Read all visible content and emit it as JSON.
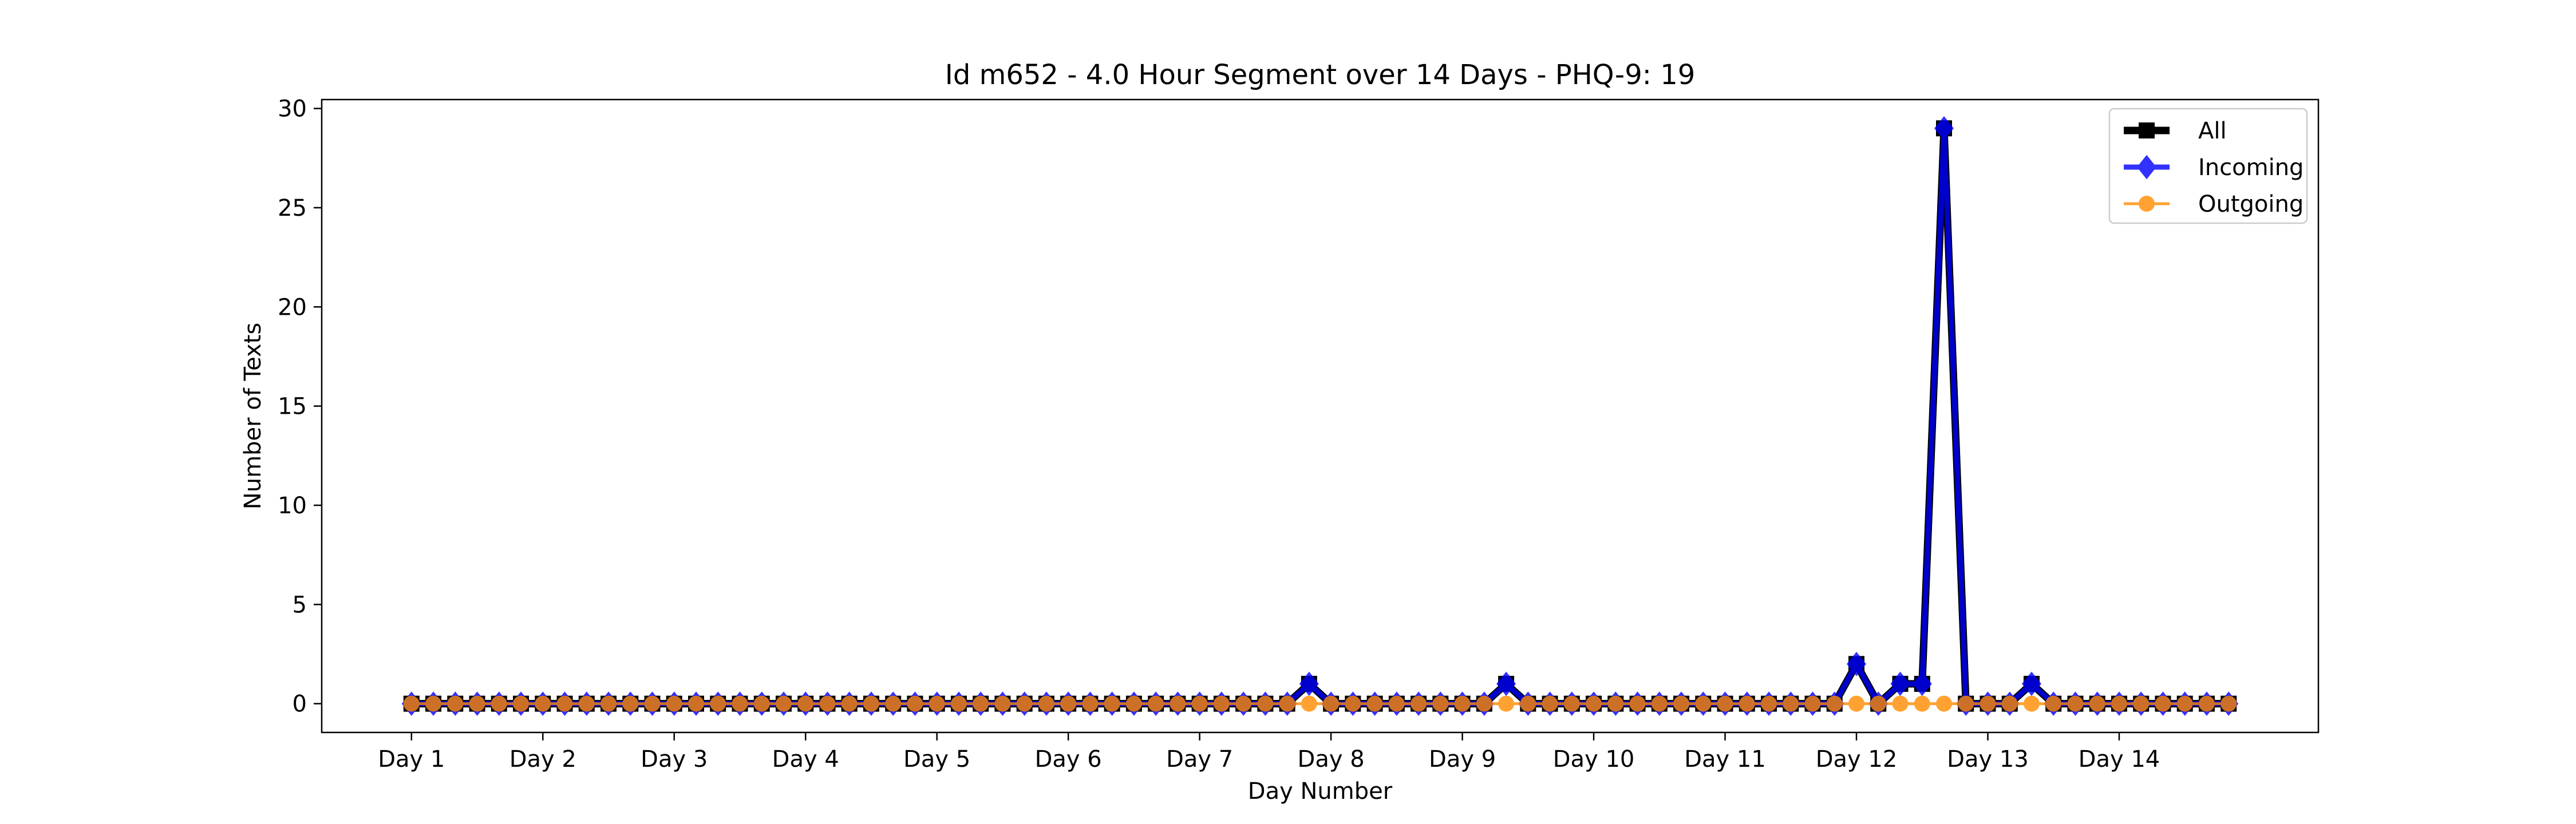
{
  "chart_data": {
    "type": "line",
    "title": "Id m652 - 4.0 Hour Segment over 14 Days - PHQ-9: 19",
    "xlabel": "Day Number",
    "ylabel": "Number of Texts",
    "ylim": [
      -1.45,
      30.45
    ],
    "xlim": [
      -4.1,
      87.1
    ],
    "yticks": [
      0,
      5,
      10,
      15,
      20,
      25,
      30
    ],
    "xticks": [
      {
        "pos": 0,
        "label": "Day 1"
      },
      {
        "pos": 6,
        "label": "Day 2"
      },
      {
        "pos": 12,
        "label": "Day 3"
      },
      {
        "pos": 18,
        "label": "Day 4"
      },
      {
        "pos": 24,
        "label": "Day 5"
      },
      {
        "pos": 30,
        "label": "Day 6"
      },
      {
        "pos": 36,
        "label": "Day 7"
      },
      {
        "pos": 42,
        "label": "Day 8"
      },
      {
        "pos": 48,
        "label": "Day 9"
      },
      {
        "pos": 54,
        "label": "Day 10"
      },
      {
        "pos": 60,
        "label": "Day 11"
      },
      {
        "pos": 66,
        "label": "Day 12"
      },
      {
        "pos": 72,
        "label": "Day 13"
      },
      {
        "pos": 78,
        "label": "Day 14"
      }
    ],
    "grid": false,
    "legend": "top-right",
    "series": [
      {
        "name": "All",
        "color": "#000000",
        "marker": "square",
        "values": [
          0,
          0,
          0,
          0,
          0,
          0,
          0,
          0,
          0,
          0,
          0,
          0,
          0,
          0,
          0,
          0,
          0,
          0,
          0,
          0,
          0,
          0,
          0,
          0,
          0,
          0,
          0,
          0,
          0,
          0,
          0,
          0,
          0,
          0,
          0,
          0,
          0,
          0,
          0,
          0,
          0,
          1,
          0,
          0,
          0,
          0,
          0,
          0,
          0,
          0,
          1,
          0,
          0,
          0,
          0,
          0,
          0,
          0,
          0,
          0,
          0,
          0,
          0,
          0,
          0,
          0,
          2,
          0,
          1,
          1,
          29,
          0,
          0,
          0,
          1,
          0,
          0,
          0,
          0,
          0,
          0,
          0,
          0,
          0
        ]
      },
      {
        "name": "Incoming",
        "color": "#0000ff",
        "marker": "diamond",
        "values": [
          0,
          0,
          0,
          0,
          0,
          0,
          0,
          0,
          0,
          0,
          0,
          0,
          0,
          0,
          0,
          0,
          0,
          0,
          0,
          0,
          0,
          0,
          0,
          0,
          0,
          0,
          0,
          0,
          0,
          0,
          0,
          0,
          0,
          0,
          0,
          0,
          0,
          0,
          0,
          0,
          0,
          1,
          0,
          0,
          0,
          0,
          0,
          0,
          0,
          0,
          1,
          0,
          0,
          0,
          0,
          0,
          0,
          0,
          0,
          0,
          0,
          0,
          0,
          0,
          0,
          0,
          2,
          0,
          1,
          1,
          29,
          0,
          0,
          0,
          1,
          0,
          0,
          0,
          0,
          0,
          0,
          0,
          0,
          0
        ]
      },
      {
        "name": "Outgoing",
        "color": "#ff8c00",
        "marker": "circle",
        "values": [
          0,
          0,
          0,
          0,
          0,
          0,
          0,
          0,
          0,
          0,
          0,
          0,
          0,
          0,
          0,
          0,
          0,
          0,
          0,
          0,
          0,
          0,
          0,
          0,
          0,
          0,
          0,
          0,
          0,
          0,
          0,
          0,
          0,
          0,
          0,
          0,
          0,
          0,
          0,
          0,
          0,
          0,
          0,
          0,
          0,
          0,
          0,
          0,
          0,
          0,
          0,
          0,
          0,
          0,
          0,
          0,
          0,
          0,
          0,
          0,
          0,
          0,
          0,
          0,
          0,
          0,
          0,
          0,
          0,
          0,
          0,
          0,
          0,
          0,
          0,
          0,
          0,
          0,
          0,
          0,
          0,
          0,
          0,
          0
        ]
      }
    ]
  }
}
